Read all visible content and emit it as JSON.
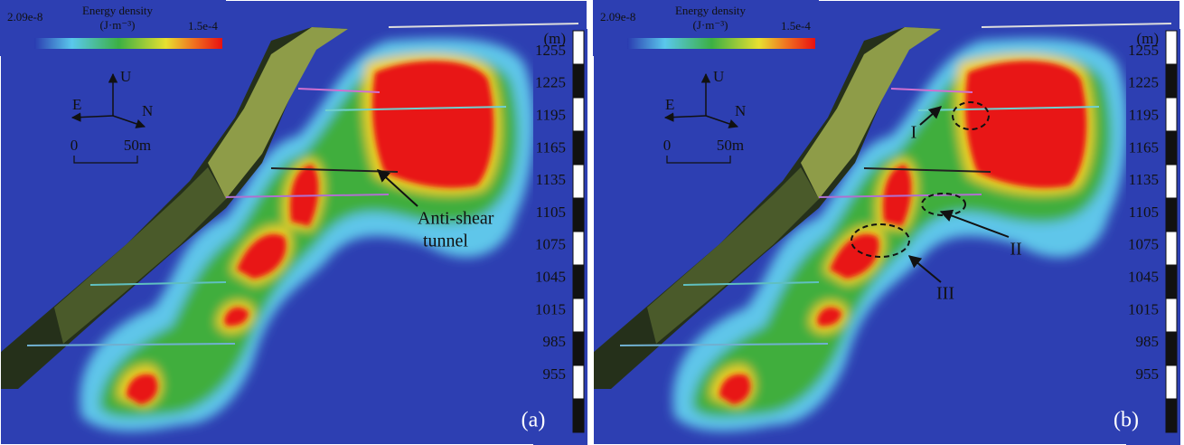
{
  "panels": [
    {
      "label": "(a)",
      "colorbar": {
        "title": "Energy density",
        "unit": "(J·m⁻³)",
        "min_label": "2.09e-8",
        "max_label": "1.5e-4"
      },
      "compass": {
        "up": "U",
        "east": "E",
        "north": "N"
      },
      "scale": {
        "start": "0",
        "end": "50m"
      },
      "elevation": {
        "unit": "(m)",
        "ticks": [
          1255,
          1225,
          1195,
          1165,
          1135,
          1105,
          1075,
          1045,
          1015,
          985,
          955
        ]
      },
      "annotations": [
        "Anti-shear",
        "tunnel"
      ]
    },
    {
      "label": "(b)",
      "colorbar": {
        "title": "Energy density",
        "unit": "(J·m⁻³)",
        "min_label": "2.09e-8",
        "max_label": "1.5e-4"
      },
      "compass": {
        "up": "U",
        "east": "E",
        "north": "N"
      },
      "scale": {
        "start": "0",
        "end": "50m"
      },
      "elevation": {
        "unit": "(m)",
        "ticks": [
          1255,
          1225,
          1195,
          1165,
          1135,
          1105,
          1075,
          1045,
          1015,
          985,
          955
        ]
      },
      "annotations": [
        "I",
        "II",
        "III"
      ]
    }
  ]
}
